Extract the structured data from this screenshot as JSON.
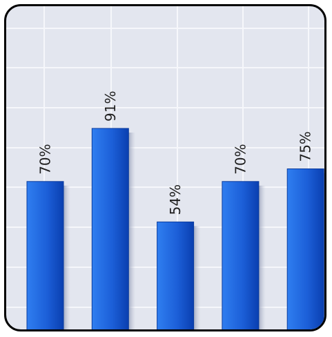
{
  "chart_data": {
    "type": "bar",
    "values": [
      70,
      91,
      54,
      70,
      75
    ],
    "data_labels": [
      "70%",
      "91%",
      "54%",
      "70%",
      "75%"
    ],
    "ylim": [
      0,
      100
    ],
    "grid": true,
    "colors": {
      "bar_light": "#3f8cf0",
      "bar_dark": "#0a3fb0",
      "background": "#e3e6ef",
      "grid": "#f4f5f9"
    }
  }
}
